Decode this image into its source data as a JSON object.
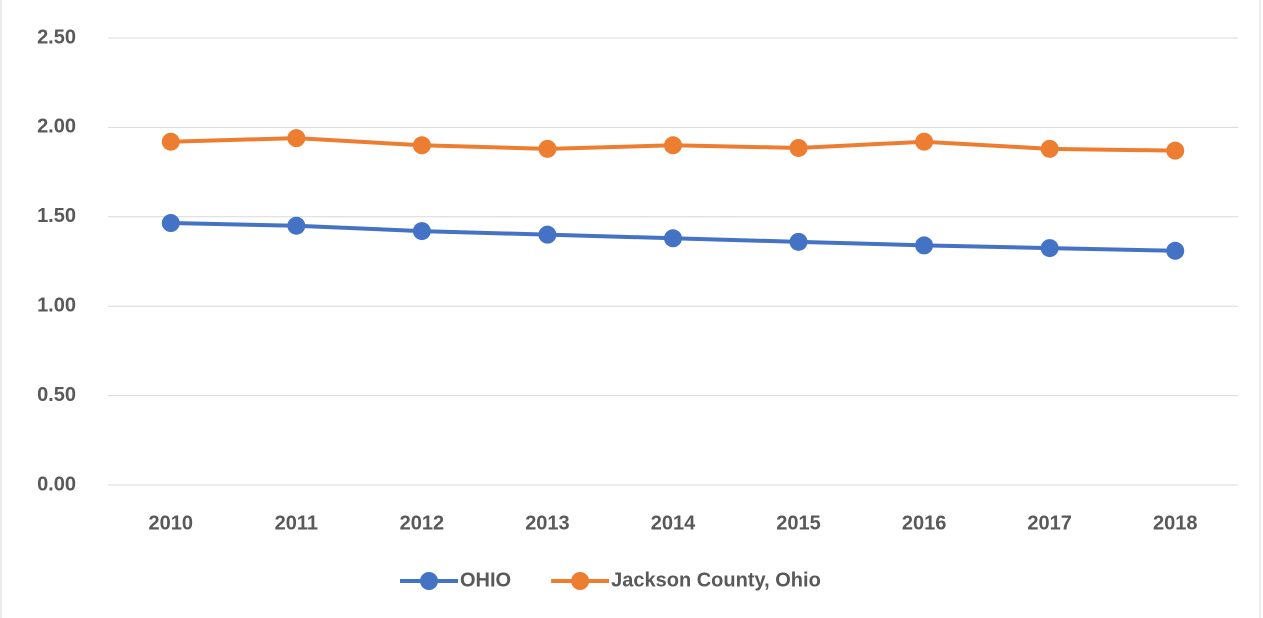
{
  "chart_data": {
    "type": "line",
    "categories": [
      "2010",
      "2011",
      "2012",
      "2013",
      "2014",
      "2015",
      "2016",
      "2017",
      "2018"
    ],
    "series": [
      {
        "name": "OHIO",
        "color": "#4472c4",
        "values": [
          1.465,
          1.45,
          1.42,
          1.4,
          1.38,
          1.36,
          1.34,
          1.325,
          1.31
        ]
      },
      {
        "name": "Jackson County, Ohio",
        "color": "#ed7d31",
        "values": [
          1.92,
          1.94,
          1.9,
          1.88,
          1.9,
          1.885,
          1.92,
          1.88,
          1.87
        ]
      }
    ],
    "ylim": [
      0,
      2.5
    ],
    "yticks": [
      {
        "value": 0,
        "label": "0.00"
      },
      {
        "value": 0.5,
        "label": "0.50"
      },
      {
        "value": 1,
        "label": "1.00"
      },
      {
        "value": 1.5,
        "label": "1.50"
      },
      {
        "value": 2,
        "label": "2.00"
      },
      {
        "value": 2.5,
        "label": "2.50"
      }
    ],
    "grid": true,
    "legend": "bottom"
  }
}
